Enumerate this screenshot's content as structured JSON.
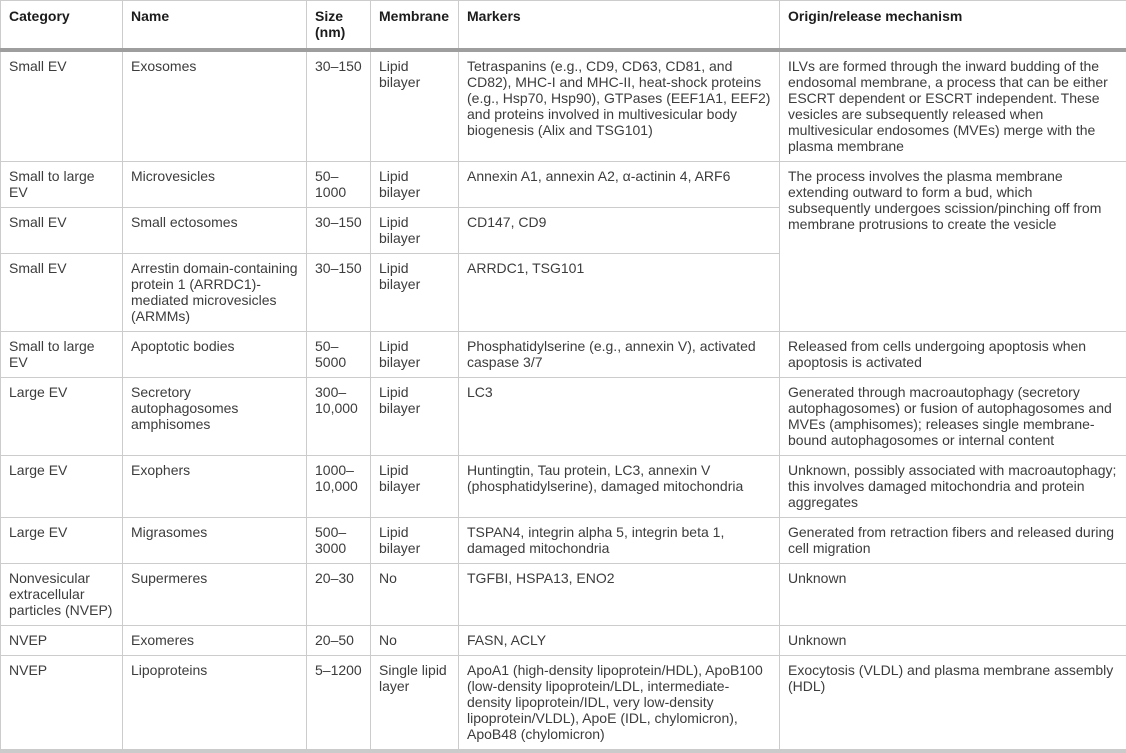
{
  "table": {
    "columns": [
      "Category",
      "Name",
      "Size (nm)",
      "Membrane",
      "Markers",
      "Origin/release mechanism"
    ],
    "rows": [
      {
        "category": "Small EV",
        "name": "Exosomes",
        "size": "30–150",
        "membrane": "Lipid bilayer",
        "markers": "Tetraspanins (e.g., CD9, CD63, CD81, and CD82), MHC-I and MHC-II, heat-shock proteins (e.g., Hsp70, Hsp90), GTPases (EEF1A1, EEF2) and proteins involved in multivesicular body biogenesis (Alix and TSG101)",
        "origin": "ILVs are formed through the inward budding of the endosomal membrane, a process that can be either ESCRT dependent or ESCRT independent. These vesicles are subsequently released when multivesicular endosomes (MVEs) merge with the plasma membrane",
        "origin_rowspan": 1
      },
      {
        "category": "Small to large EV",
        "name": "Microvesicles",
        "size": "50–1000",
        "membrane": "Lipid bilayer",
        "markers": "Annexin A1, annexin A2, α-actinin 4, ARF6",
        "origin": "The process involves the plasma membrane extending outward to form a bud, which subsequently undergoes scission/pinching off from membrane protrusions to create the vesicle",
        "origin_rowspan": 3
      },
      {
        "category": "Small EV",
        "name": "Small ectosomes",
        "size": "30–150",
        "membrane": "Lipid bilayer",
        "markers": "CD147, CD9",
        "origin": null
      },
      {
        "category": "Small EV",
        "name": "Arrestin domain-containing protein 1 (ARRDC1)-mediated microvesicles (ARMMs)",
        "size": "30–150",
        "membrane": "Lipid bilayer",
        "markers": "ARRDC1, TSG101",
        "origin": null
      },
      {
        "category": "Small to large EV",
        "name": "Apoptotic bodies",
        "size": "50–5000",
        "membrane": "Lipid bilayer",
        "markers": "Phosphatidylserine (e.g., annexin V), activated caspase 3/7",
        "origin": "Released from cells undergoing apoptosis when apoptosis is activated",
        "origin_rowspan": 1
      },
      {
        "category": "Large EV",
        "name": "Secretory autophagosomes amphisomes",
        "size": "300–10,000",
        "membrane": "Lipid bilayer",
        "markers": "LC3",
        "origin": "Generated through macroautophagy (secretory autophagosomes) or fusion of autophagosomes and MVEs (amphisomes); releases single membrane-bound autophagosomes or internal content",
        "origin_rowspan": 1
      },
      {
        "category": "Large EV",
        "name": "Exophers",
        "size": "1000–10,000",
        "membrane": "Lipid bilayer",
        "markers": "Huntingtin, Tau protein, LC3, annexin V (phosphatidylserine), damaged mitochondria",
        "origin": "Unknown, possibly associated with macroautophagy; this involves damaged mitochondria and protein aggregates",
        "origin_rowspan": 1
      },
      {
        "category": "Large EV",
        "name": "Migrasomes",
        "size": "500–3000",
        "membrane": "Lipid bilayer",
        "markers": "TSPAN4, integrin alpha 5, integrin beta 1, damaged mitochondria",
        "origin": "Generated from retraction fibers and released during cell migration",
        "origin_rowspan": 1
      },
      {
        "category": "Nonvesicular extracellular particles (NVEP)",
        "name": "Supermeres",
        "size": "20–30",
        "membrane": "No",
        "markers": "TGFBI, HSPA13, ENO2",
        "origin": "Unknown",
        "origin_rowspan": 1
      },
      {
        "category": "NVEP",
        "name": "Exomeres",
        "size": "20–50",
        "membrane": "No",
        "markers": "FASN, ACLY",
        "origin": "Unknown",
        "origin_rowspan": 1
      },
      {
        "category": "NVEP",
        "name": "Lipoproteins",
        "size": "5–1200",
        "membrane": "Single lipid layer",
        "markers": "ApoA1 (high-density lipoprotein/HDL), ApoB100 (low-density lipoprotein/LDL, intermediate-density lipoprotein/IDL, very low-density lipoprotein/VLDL), ApoE (IDL, chylomicron), ApoB48 (chylomicron)",
        "origin": "Exocytosis (VLDL) and plasma membrane assembly (HDL)",
        "origin_rowspan": 1
      }
    ]
  },
  "colors": {
    "cell_border": "#cccccc",
    "header_rule": "#9e9e9e",
    "bottom_rule": "#cbcbcb",
    "body_text": "#3c3c3c",
    "header_text": "#1c1c1c",
    "background": "#ffffff"
  }
}
